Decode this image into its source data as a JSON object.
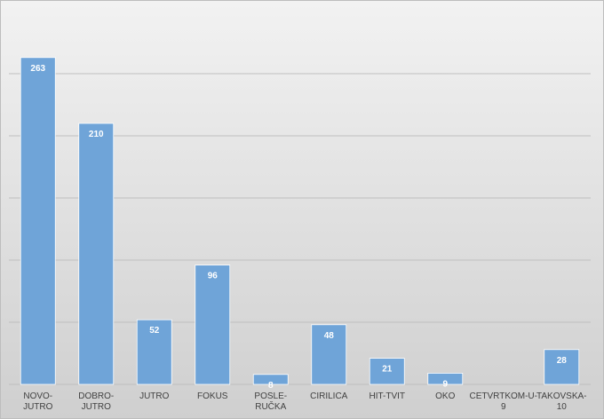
{
  "chart_data": {
    "type": "bar",
    "categories": [
      "NOVO-JUTRO",
      "DOBRO-JUTRO",
      "JUTRO",
      "FOKUS",
      "POSLE-RUČKA",
      "CIRILICA",
      "HIT-TVIT",
      "OKO",
      "CETVRTKOM-U-9",
      "TAKOVSKA-10"
    ],
    "values": [
      263,
      210,
      52,
      96,
      8,
      48,
      21,
      9,
      null,
      28
    ],
    "color": "#6fa4d8",
    "ylim": [
      0,
      300
    ],
    "yticks": [
      0,
      50,
      100,
      150,
      200,
      250
    ],
    "grid": true
  }
}
